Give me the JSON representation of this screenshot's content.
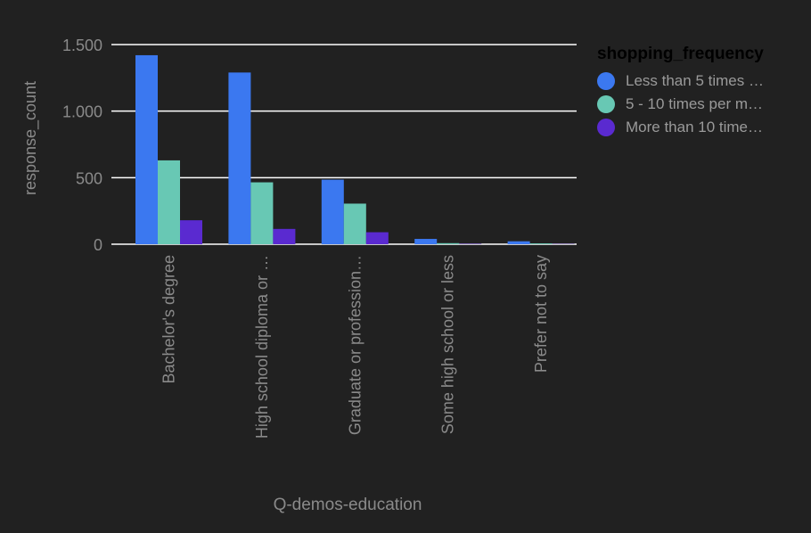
{
  "chart_data": {
    "type": "bar",
    "categories": [
      "Bachelor's degree",
      "High school diploma or …",
      "Graduate or profession…",
      "Some high school or less",
      "Prefer not to say"
    ],
    "series": [
      {
        "name": "Less than 5 times …",
        "color": "#3b78f0",
        "values": [
          1420,
          1290,
          485,
          40,
          22
        ]
      },
      {
        "name": "5 - 10 times per m…",
        "color": "#68c8b4",
        "values": [
          630,
          465,
          305,
          8,
          6
        ]
      },
      {
        "name": "More than 10 time…",
        "color": "#5a2ad0",
        "values": [
          180,
          115,
          90,
          3,
          2
        ]
      }
    ],
    "xlabel": "Q-demos-education",
    "ylabel": "response_count",
    "ylim": [
      0,
      1500
    ],
    "yticks": [
      0,
      500,
      1000,
      1500
    ],
    "ytick_labels": [
      "0",
      "500",
      "1.000",
      "1.500"
    ],
    "legend": {
      "title": "shopping_frequency",
      "position": "top-right"
    },
    "grid": true
  }
}
